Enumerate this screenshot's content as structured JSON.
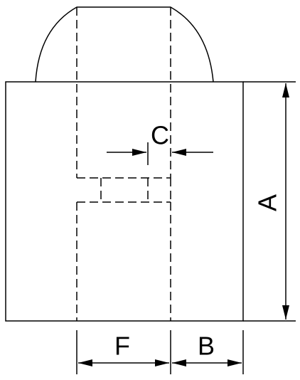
{
  "drawing": {
    "line_color": "#000000",
    "background": "#ffffff",
    "labels": {
      "a": "A",
      "b": "B",
      "c": "C",
      "f": "F"
    }
  }
}
